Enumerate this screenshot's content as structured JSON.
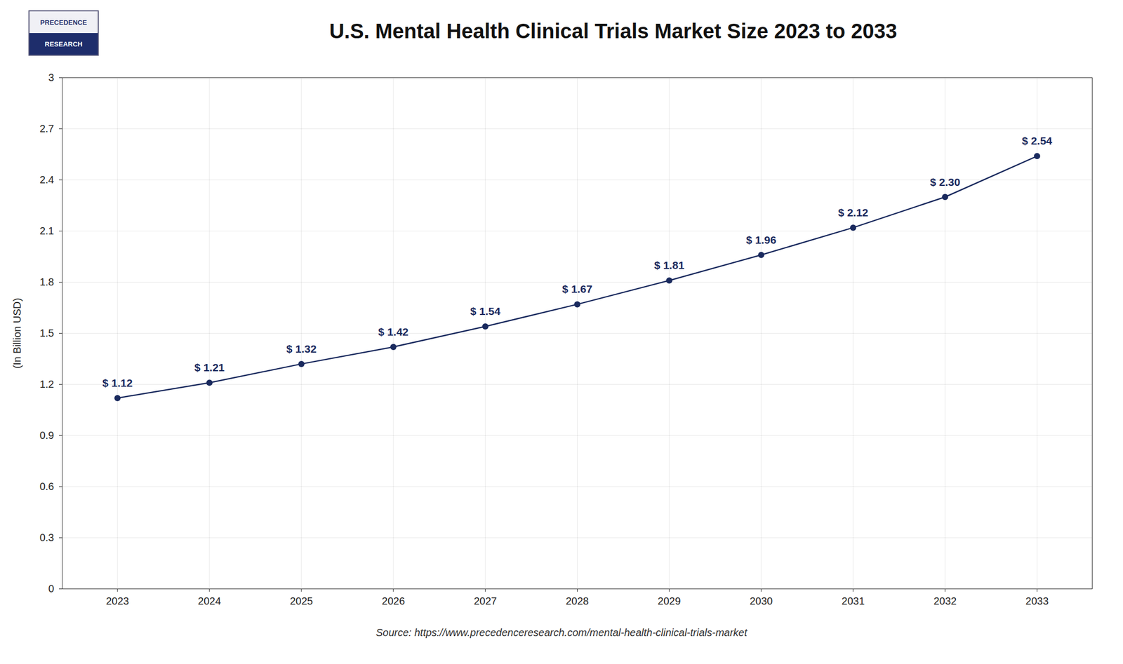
{
  "chart_data": {
    "type": "line",
    "title": "U.S. Mental Health Clinical Trials Market Size 2023 to 2033",
    "ylabel": "(In Billion USD)",
    "source": "Source: https://www.precedenceresearch.com/mental-health-clinical-trials-market",
    "annotations": [
      "PRECEDENCE",
      "RESEARCH"
    ],
    "x": [
      2023,
      2024,
      2025,
      2026,
      2027,
      2028,
      2029,
      2030,
      2031,
      2032,
      2033
    ],
    "values": [
      1.12,
      1.21,
      1.32,
      1.42,
      1.54,
      1.67,
      1.81,
      1.96,
      2.12,
      2.3,
      2.54
    ],
    "value_labels": [
      "$ 1.12",
      "$ 1.21",
      "$ 1.32",
      "$ 1.42",
      "$ 1.54",
      "$ 1.67",
      "$ 1.81",
      "$ 1.96",
      "$ 2.12",
      "$ 2.30",
      "$ 2.54"
    ],
    "data_labels": true,
    "color": "#1a2a5e",
    "marker": "circle",
    "xlim": [
      2022.4,
      2033.6
    ],
    "xticks": [
      2023,
      2024,
      2025,
      2026,
      2027,
      2028,
      2029,
      2030,
      2031,
      2032,
      2033
    ],
    "ylim": [
      0,
      3.0
    ],
    "yticks": [
      0,
      0.3,
      0.6,
      0.9,
      1.2,
      1.5,
      1.8,
      2.1,
      2.4,
      2.7,
      3.0
    ],
    "grid": true
  }
}
